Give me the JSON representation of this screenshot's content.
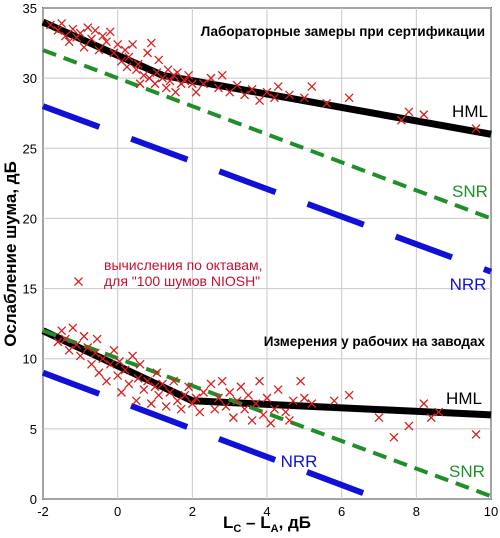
{
  "chart_data": {
    "type": "scatter",
    "xlabel": "L",
    "xlabel_sub1": "C",
    "xlabel_mid": " – L",
    "xlabel_sub2": "A",
    "xlabel_tail": ", дБ",
    "ylabel": "Ослабление шума, дБ",
    "xlim": [
      -2,
      10
    ],
    "ylim": [
      0,
      35
    ],
    "xticks": [
      -2,
      0,
      2,
      4,
      6,
      8,
      10
    ],
    "yticks": [
      0,
      5,
      10,
      15,
      20,
      25,
      30,
      35
    ],
    "grid": true,
    "annotations": {
      "top_title": "Лабораторные замеры при сертификации",
      "bottom_title": "Измерения у рабочих на заводах",
      "legend_line1": "вычисления по октавам,",
      "legend_line2": "для \"100 шумов NIOSH\""
    },
    "colors": {
      "points": "#d62020",
      "hml": "#000000",
      "snr": "#1f8f2a",
      "nrr": "#1010d8",
      "legend_text": "#c8102e",
      "nrr_label": "#1010d8",
      "snr_label": "#1f8f2a",
      "hml_label": "#000000"
    },
    "series": [
      {
        "name": "HML",
        "style": "solid",
        "group": "lab",
        "x": [
          -2,
          1.2,
          10
        ],
        "y": [
          34,
          30.2,
          26
        ]
      },
      {
        "name": "SNR",
        "style": "dashed",
        "group": "lab",
        "x": [
          -2,
          10
        ],
        "y": [
          32,
          20
        ]
      },
      {
        "name": "NRR",
        "style": "long-dashed",
        "group": "lab",
        "x": [
          -2,
          10
        ],
        "y": [
          28,
          16.2
        ]
      },
      {
        "name": "HML",
        "style": "solid",
        "group": "field",
        "x": [
          -2,
          2,
          10
        ],
        "y": [
          12,
          7,
          6
        ]
      },
      {
        "name": "SNR",
        "style": "dashed",
        "group": "field",
        "x": [
          -2,
          10
        ],
        "y": [
          12,
          0.2
        ]
      },
      {
        "name": "NRR",
        "style": "long-dashed",
        "group": "field",
        "x": [
          -2,
          7
        ],
        "y": [
          9,
          0
        ]
      }
    ],
    "points_lab": [
      [
        -1.8,
        33.8
      ],
      [
        -1.6,
        33.4
      ],
      [
        -1.5,
        33.9
      ],
      [
        -1.4,
        33.0
      ],
      [
        -1.3,
        32.6
      ],
      [
        -1.2,
        33.5
      ],
      [
        -1.1,
        32.9
      ],
      [
        -1.0,
        33.2
      ],
      [
        -0.9,
        32.2
      ],
      [
        -0.8,
        33.6
      ],
      [
        -0.7,
        32.8
      ],
      [
        -0.6,
        33.4
      ],
      [
        -0.5,
        32.0
      ],
      [
        -0.4,
        33.0
      ],
      [
        -0.3,
        32.6
      ],
      [
        -0.2,
        33.3
      ],
      [
        -0.1,
        31.8
      ],
      [
        0.0,
        32.4
      ],
      [
        0.1,
        31.2
      ],
      [
        0.2,
        32.0
      ],
      [
        0.25,
        30.8
      ],
      [
        0.3,
        31.5
      ],
      [
        0.4,
        32.4
      ],
      [
        0.5,
        30.6
      ],
      [
        0.55,
        31.0
      ],
      [
        0.6,
        29.6
      ],
      [
        0.7,
        30.2
      ],
      [
        0.8,
        31.8
      ],
      [
        0.85,
        30.0
      ],
      [
        0.9,
        32.5
      ],
      [
        1.0,
        29.6
      ],
      [
        1.05,
        30.4
      ],
      [
        1.1,
        31.3
      ],
      [
        1.2,
        30.0
      ],
      [
        1.3,
        29.3
      ],
      [
        1.35,
        30.6
      ],
      [
        1.4,
        29.8
      ],
      [
        1.5,
        30.2
      ],
      [
        1.55,
        29.0
      ],
      [
        1.6,
        30.4
      ],
      [
        1.7,
        29.6
      ],
      [
        1.8,
        29.8
      ],
      [
        1.9,
        30.2
      ],
      [
        2.0,
        29.6
      ],
      [
        2.1,
        29.0
      ],
      [
        2.3,
        29.6
      ],
      [
        2.5,
        30.0
      ],
      [
        2.7,
        29.3
      ],
      [
        2.8,
        30.2
      ],
      [
        3.0,
        29.0
      ],
      [
        3.2,
        29.5
      ],
      [
        3.4,
        28.8
      ],
      [
        3.6,
        29.2
      ],
      [
        3.8,
        28.4
      ],
      [
        4.0,
        29.0
      ],
      [
        4.2,
        28.6
      ],
      [
        4.3,
        29.4
      ],
      [
        4.6,
        28.8
      ],
      [
        5.0,
        28.6
      ],
      [
        5.2,
        29.4
      ],
      [
        5.6,
        28.2
      ],
      [
        6.2,
        28.6
      ],
      [
        7.6,
        27.0
      ],
      [
        7.8,
        27.6
      ],
      [
        8.2,
        27.4
      ],
      [
        9.6,
        26.4
      ]
    ],
    "points_field": [
      [
        -1.6,
        11.2
      ],
      [
        -1.5,
        12.0
      ],
      [
        -1.4,
        11.4
      ],
      [
        -1.3,
        10.6
      ],
      [
        -1.2,
        12.2
      ],
      [
        -1.1,
        11.0
      ],
      [
        -1.0,
        10.2
      ],
      [
        -0.9,
        11.6
      ],
      [
        -0.8,
        10.8
      ],
      [
        -0.7,
        9.6
      ],
      [
        -0.6,
        10.4
      ],
      [
        -0.55,
        11.4
      ],
      [
        -0.5,
        9.0
      ],
      [
        -0.4,
        10.0
      ],
      [
        -0.3,
        8.4
      ],
      [
        -0.2,
        9.6
      ],
      [
        -0.1,
        10.6
      ],
      [
        0.0,
        8.8
      ],
      [
        0.05,
        9.8
      ],
      [
        0.1,
        7.6
      ],
      [
        0.2,
        9.2
      ],
      [
        0.3,
        8.2
      ],
      [
        0.4,
        10.2
      ],
      [
        0.5,
        7.0
      ],
      [
        0.55,
        8.6
      ],
      [
        0.6,
        9.6
      ],
      [
        0.7,
        7.8
      ],
      [
        0.8,
        8.4
      ],
      [
        0.9,
        6.8
      ],
      [
        1.0,
        8.0
      ],
      [
        1.05,
        9.0
      ],
      [
        1.1,
        7.4
      ],
      [
        1.2,
        8.2
      ],
      [
        1.3,
        6.6
      ],
      [
        1.4,
        7.6
      ],
      [
        1.5,
        8.4
      ],
      [
        1.6,
        7.0
      ],
      [
        1.7,
        6.4
      ],
      [
        1.8,
        7.4
      ],
      [
        1.9,
        8.0
      ],
      [
        2.0,
        6.8
      ],
      [
        2.1,
        7.2
      ],
      [
        2.2,
        6.2
      ],
      [
        2.3,
        7.6
      ],
      [
        2.5,
        8.2
      ],
      [
        2.6,
        6.4
      ],
      [
        2.7,
        7.2
      ],
      [
        2.8,
        8.4
      ],
      [
        2.9,
        6.6
      ],
      [
        3.0,
        7.6
      ],
      [
        3.1,
        5.8
      ],
      [
        3.2,
        7.0
      ],
      [
        3.3,
        8.0
      ],
      [
        3.4,
        6.4
      ],
      [
        3.5,
        7.4
      ],
      [
        3.6,
        5.6
      ],
      [
        3.7,
        6.8
      ],
      [
        3.8,
        8.4
      ],
      [
        3.9,
        6.0
      ],
      [
        4.0,
        7.2
      ],
      [
        4.1,
        5.4
      ],
      [
        4.2,
        6.4
      ],
      [
        4.3,
        7.8
      ],
      [
        4.5,
        6.2
      ],
      [
        4.6,
        5.6
      ],
      [
        4.7,
        7.0
      ],
      [
        4.9,
        8.4
      ],
      [
        5.0,
        7.2
      ],
      [
        5.2,
        6.8
      ],
      [
        5.8,
        7.0
      ],
      [
        6.2,
        7.4
      ],
      [
        7.0,
        5.8
      ],
      [
        7.4,
        4.4
      ],
      [
        7.8,
        5.2
      ],
      [
        8.2,
        6.8
      ],
      [
        8.4,
        5.8
      ],
      [
        8.6,
        6.2
      ],
      [
        9.6,
        4.6
      ]
    ]
  }
}
